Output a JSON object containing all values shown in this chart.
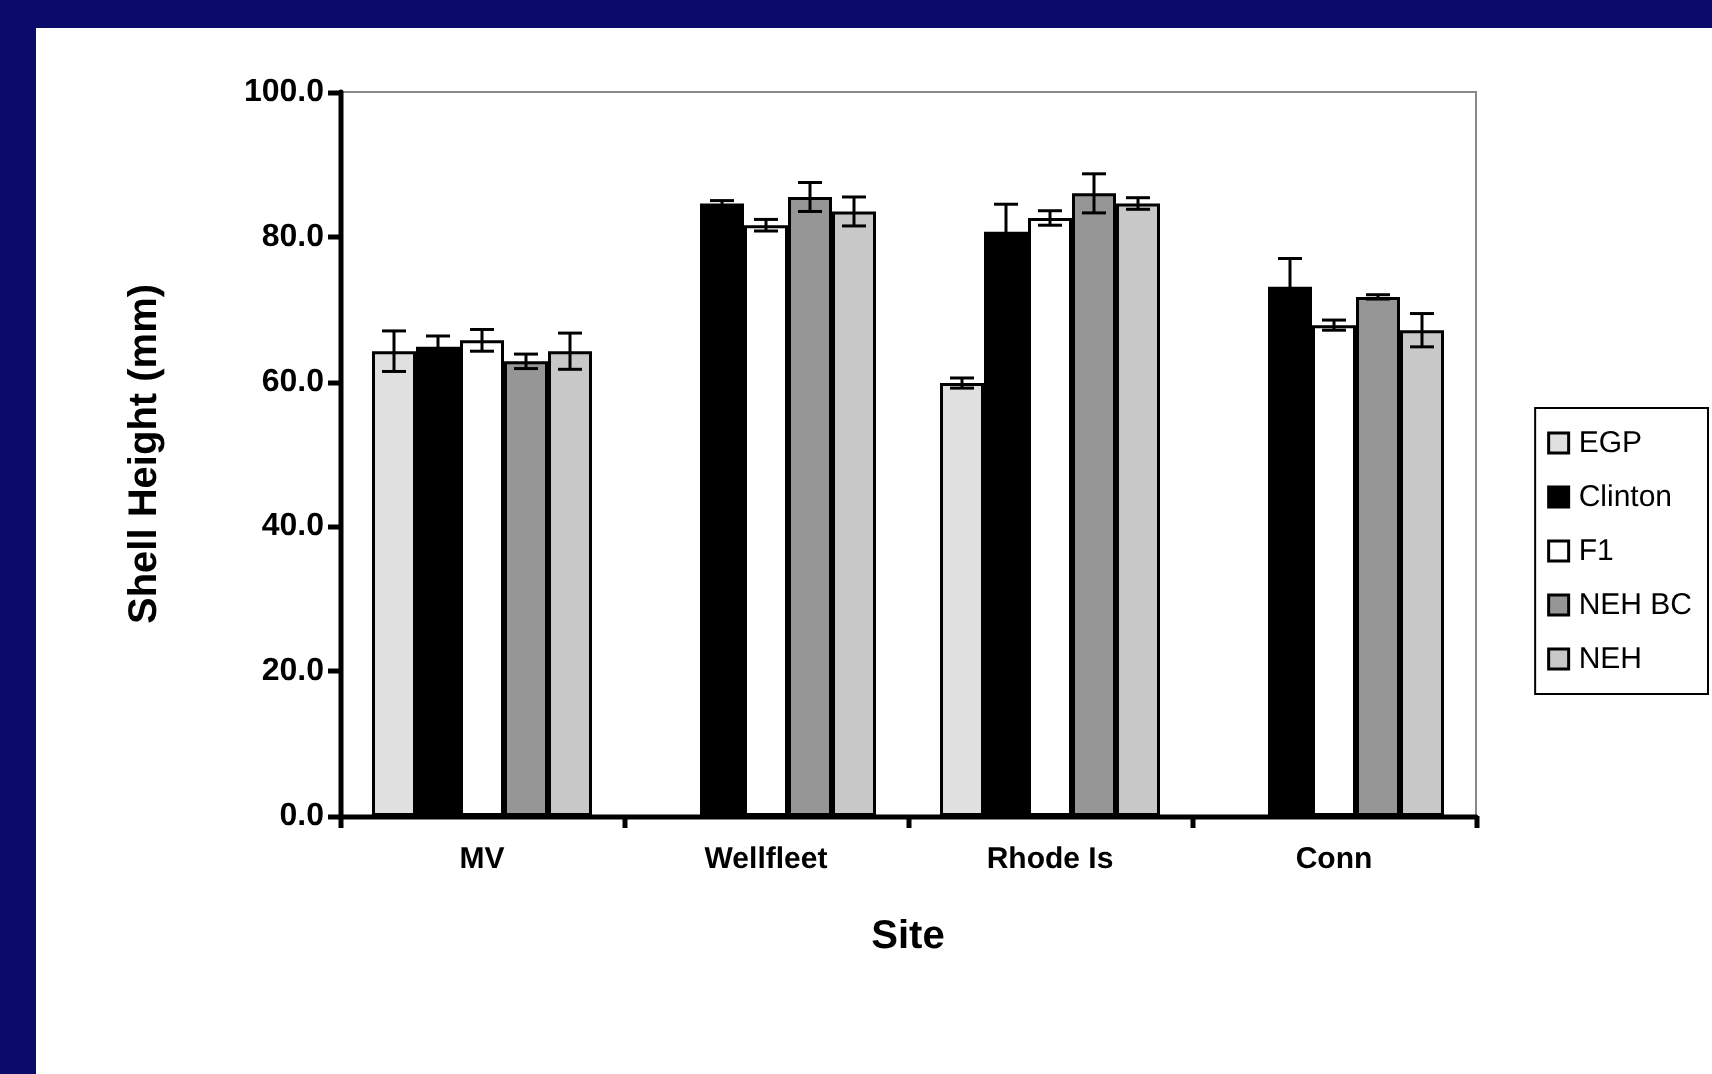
{
  "chart_data": {
    "type": "bar",
    "xlabel": "Site",
    "ylabel": "Shell Height (mm)",
    "categories": [
      "MV",
      "Wellfleet",
      "Rhode Is",
      "Conn"
    ],
    "series": [
      {
        "name": "EGP",
        "color": "#e0e0e0",
        "values": [
          64.2,
          null,
          59.8,
          null
        ],
        "errors": [
          2.8,
          null,
          0.7,
          null
        ]
      },
      {
        "name": "Clinton",
        "color": "#000000",
        "values": [
          64.8,
          84.6,
          80.7,
          73.1
        ],
        "errors": [
          1.5,
          0.4,
          3.8,
          3.9
        ]
      },
      {
        "name": "F1",
        "color": "#ffffff",
        "values": [
          65.7,
          81.6,
          82.6,
          67.8
        ],
        "errors": [
          1.5,
          0.8,
          1.0,
          0.7
        ]
      },
      {
        "name": "NEH BC",
        "color": "#969696",
        "values": [
          62.8,
          85.5,
          86.0,
          71.7
        ],
        "errors": [
          1.0,
          2.0,
          2.7,
          0.3
        ]
      },
      {
        "name": "NEH",
        "color": "#c8c8c8",
        "values": [
          64.2,
          83.5,
          84.6,
          67.1
        ],
        "errors": [
          2.5,
          2.0,
          0.8,
          2.3
        ]
      }
    ],
    "ylim": [
      0,
      100
    ],
    "yticks": [
      {
        "value": 0,
        "label": "0.0"
      },
      {
        "value": 20,
        "label": "20.0"
      },
      {
        "value": 40,
        "label": "40.0"
      },
      {
        "value": 60,
        "label": "60.0"
      },
      {
        "value": 80,
        "label": "80.0"
      },
      {
        "value": 100,
        "label": "100.0"
      }
    ],
    "grid": false,
    "legend": "right"
  }
}
